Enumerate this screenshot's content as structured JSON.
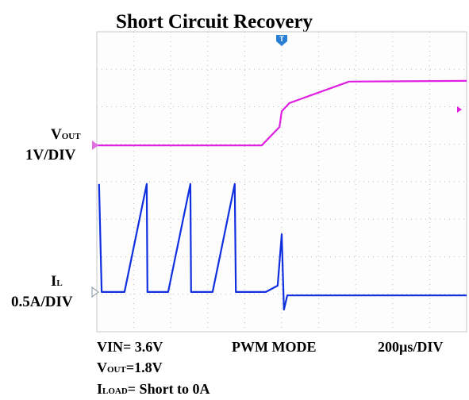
{
  "chart_data": {
    "type": "line",
    "title": "Short Circuit Recovery",
    "xlim": [
      0,
      10
    ],
    "ylim": [
      0,
      8
    ],
    "grid": true,
    "series": [
      {
        "symbol": "V",
        "subscript": "OUT",
        "scale": "1V/DIV",
        "color": "#e020e0",
        "x": [
          0,
          4.46,
          4.94,
          5.0,
          5.21,
          6.82,
          10
        ],
        "values": [
          4.97,
          4.97,
          5.46,
          5.88,
          6.1,
          6.67,
          6.69
        ]
      },
      {
        "symbol": "I",
        "subscript": "L",
        "scale": "0.5A/DIV",
        "color": "#1030e0",
        "x": [
          0.06,
          0.13,
          0.75,
          1.35,
          1.37,
          1.93,
          2.53,
          2.55,
          3.13,
          3.73,
          3.76,
          4.57,
          4.89,
          5.0,
          5.06,
          5.15,
          10
        ],
        "values": [
          3.94,
          1.06,
          1.06,
          3.94,
          1.06,
          1.06,
          3.94,
          1.06,
          1.06,
          3.94,
          1.06,
          1.06,
          1.23,
          2.6,
          0.59,
          0.97,
          0.97
        ]
      }
    ],
    "annotations": {
      "vin": "VIN= 3.6V",
      "mode": "PWM MODE",
      "timebase": "200µs/DIV",
      "vout_symbol": "V",
      "vout_subscript": "OUT",
      "vout_value": "=1.8V",
      "iload_symbol": "I",
      "iload_subscript": "LOAD",
      "iload_value": "= Short to 0A"
    }
  }
}
